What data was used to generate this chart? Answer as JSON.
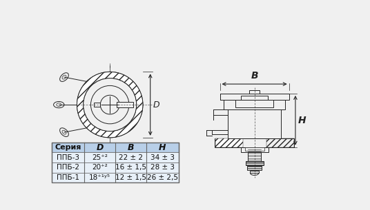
{
  "bg_color": "#f0f0f0",
  "table_header_bg": "#b8cfe8",
  "table_border": "#666666",
  "drawing_color": "#222222",
  "series": [
    "ППБ-1",
    "ППБ-2",
    "ППБ-3"
  ],
  "col_D": [
    "18⁺¹ʸ⁵",
    "20⁺²",
    "25⁺²"
  ],
  "col_B": [
    "12 ± 1,5",
    "16 ± 1,5",
    "22 ± 2"
  ],
  "col_H": [
    "26 ± 2,5",
    "28 ± 3",
    "34 ± 3"
  ],
  "header_labels": [
    "Серия",
    "D",
    "B",
    "H"
  ],
  "lw": 0.7
}
